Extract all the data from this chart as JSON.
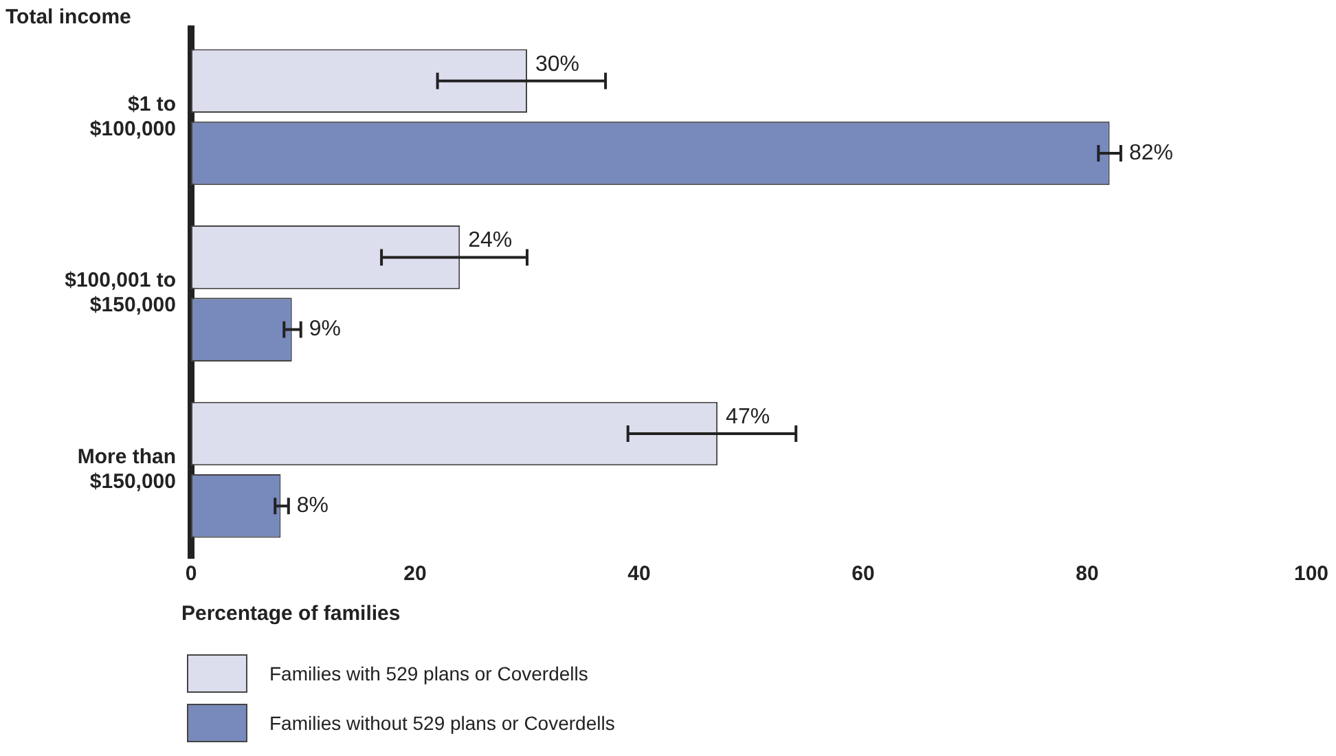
{
  "chart_data": {
    "type": "bar",
    "orientation": "horizontal",
    "ylabel": "Total income",
    "xlabel": "Percentage of families",
    "categories": [
      "$1 to $100,000",
      "$100,001 to $150,000",
      "More than $150,000"
    ],
    "series": [
      {
        "name": "Families with 529 plans or Coverdells",
        "color": "#dcdeed",
        "values": [
          30,
          24,
          47
        ],
        "errors": [
          [
            22,
            37
          ],
          [
            17,
            30
          ],
          [
            39,
            54
          ]
        ],
        "value_labels": [
          "30%",
          "24%",
          "47%"
        ]
      },
      {
        "name": "Families without 529 plans or Coverdells",
        "color": "#7889bb",
        "values": [
          82,
          9,
          8
        ],
        "errors": [
          [
            81,
            83
          ],
          [
            8.3,
            9.8
          ],
          [
            7.5,
            8.7
          ]
        ],
        "value_labels": [
          "82%",
          "9%",
          "8%"
        ]
      }
    ],
    "xlim": [
      0,
      100
    ],
    "xticks": [
      0,
      20,
      40,
      60,
      80,
      100
    ],
    "grid": false,
    "legend": "bottom"
  }
}
